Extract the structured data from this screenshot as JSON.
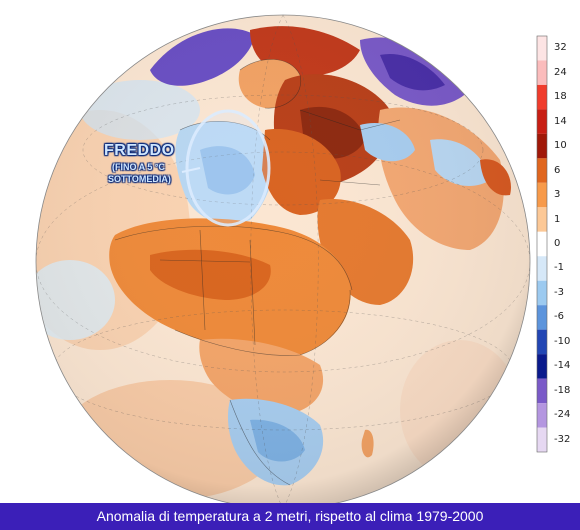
{
  "map": {
    "annotation": {
      "title": "FREDDO",
      "line1": "(FINO A 5 °C",
      "line2": "SOTTOMEDIA)"
    },
    "caption": "Anomalia di temperatura a 2 metri, rispetto al clima 1979-2000"
  },
  "legend": {
    "labels": [
      "32",
      "24",
      "18",
      "14",
      "10",
      "6",
      "3",
      "1",
      "0",
      "-1",
      "-3",
      "-6",
      "-10",
      "-14",
      "-18",
      "-24",
      "-32"
    ],
    "colors": [
      "#fde4e4",
      "#fbbcbc",
      "#f03c2c",
      "#c81e14",
      "#a01808",
      "#e0661e",
      "#f79a4a",
      "#fcc896",
      "#ffffff",
      "#d6e8f8",
      "#9ccaf0",
      "#5c94dc",
      "#2246b4",
      "#0a1a8c",
      "#7a5ac8",
      "#b496e0",
      "#e6d8f2"
    ]
  },
  "colors": {
    "ocean": "#fcecdc",
    "warm": "#f29a4c",
    "warm_strong": "#cf5a1e",
    "hot": "#a83214",
    "cold": "#a8cdef",
    "very_cold": "#6a4fc4",
    "caption_bg": "#3b1fb8"
  }
}
